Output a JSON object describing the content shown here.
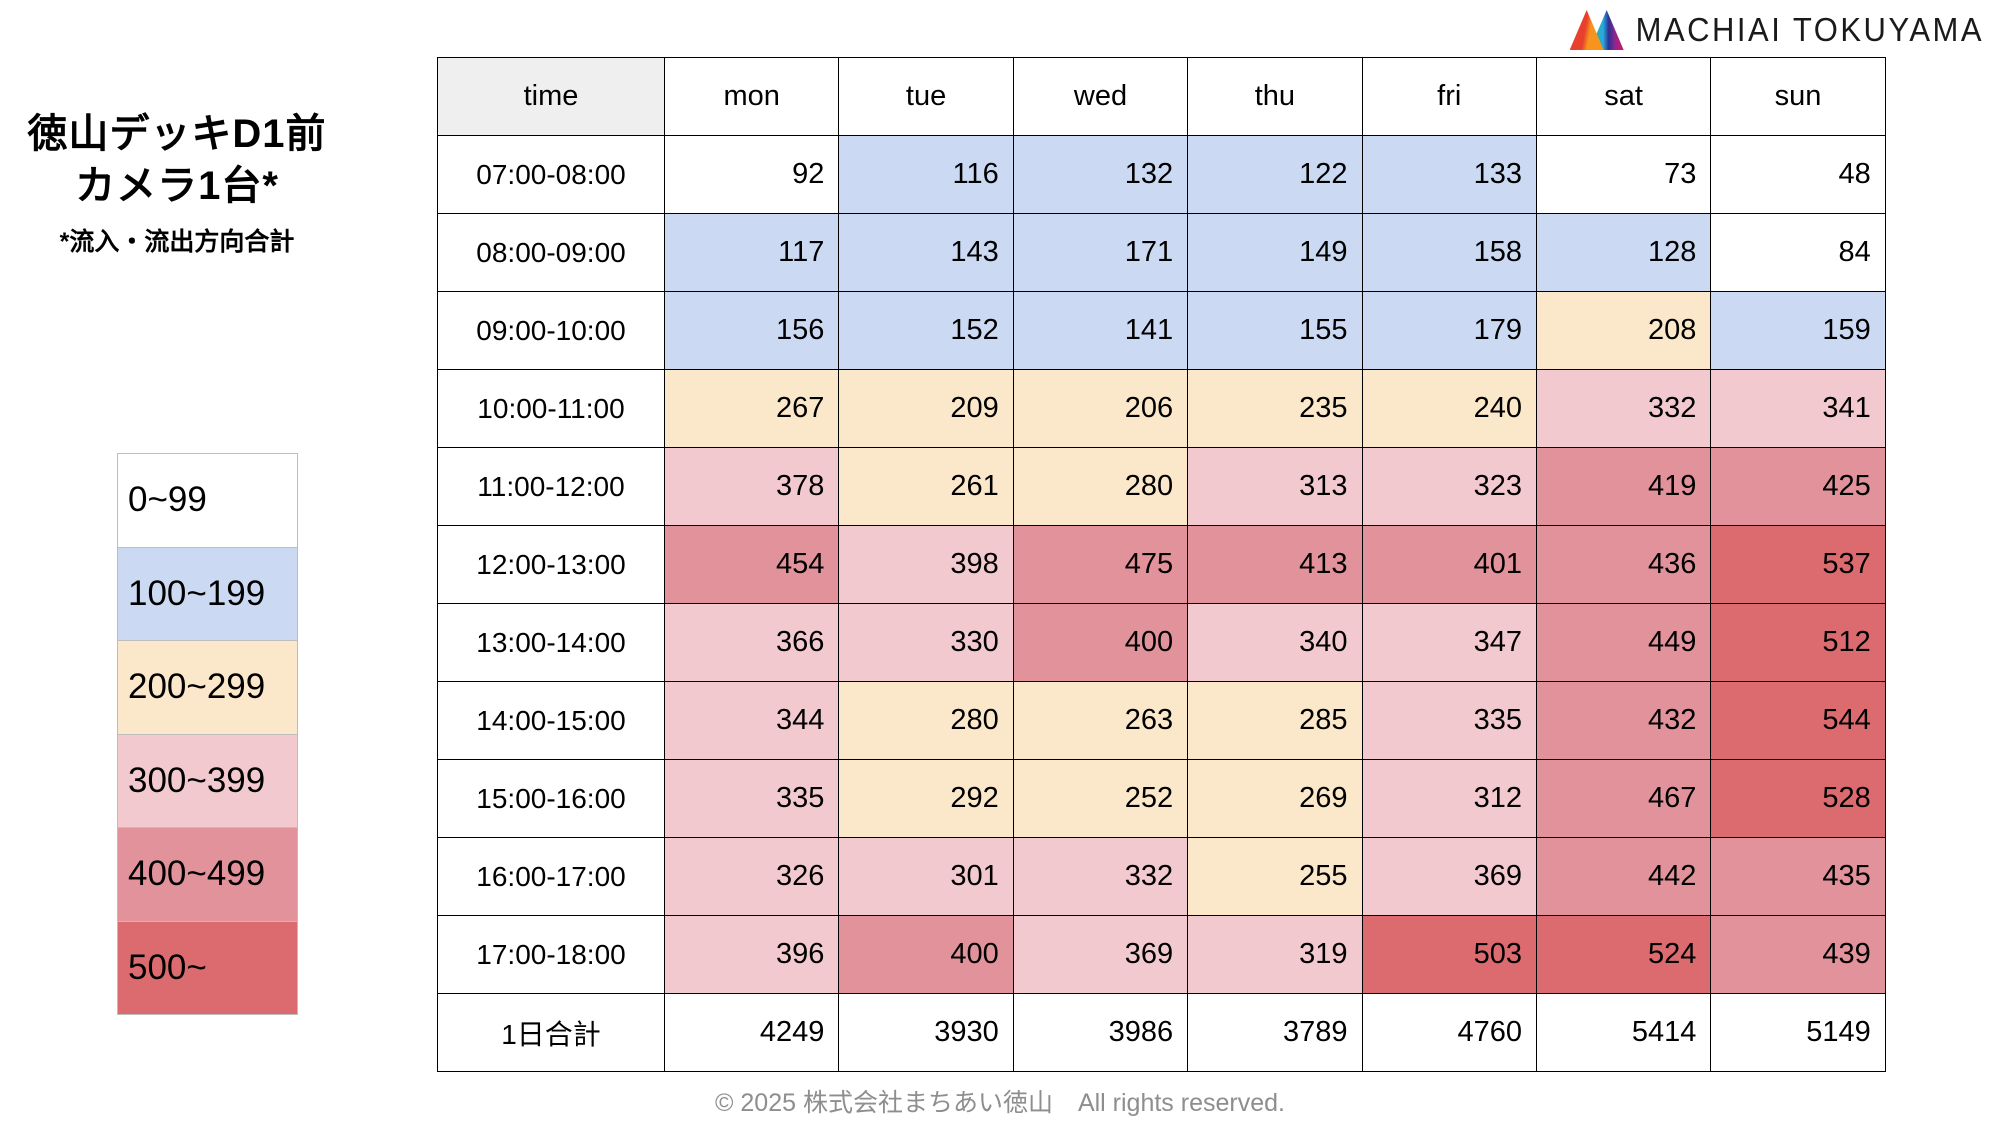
{
  "logo": {
    "brand_text": "MACHIAI TOKUYAMA"
  },
  "header": {
    "title_line1": "徳山デッキD1前",
    "title_line2": "カメラ1台*",
    "subtitle": "*流入・流出方向合計"
  },
  "legend": {
    "items": [
      {
        "label": "0~99",
        "min": 0,
        "color": "#FFFFFF"
      },
      {
        "label": "100~199",
        "min": 100,
        "color": "#CBD9F2"
      },
      {
        "label": "200~299",
        "min": 200,
        "color": "#FBE7CA"
      },
      {
        "label": "300~399",
        "min": 300,
        "color": "#F2C9CF"
      },
      {
        "label": "400~499",
        "min": 400,
        "color": "#E2929B"
      },
      {
        "label": "500~",
        "min": 500,
        "color": "#DC6B70"
      }
    ]
  },
  "chart_data": {
    "type": "heatmap",
    "title": "徳山デッキD1前 カメラ1台*",
    "note": "*流入・流出方向合計",
    "legend_position": "left",
    "columns": [
      "time",
      "mon",
      "tue",
      "wed",
      "thu",
      "fri",
      "sat",
      "sun"
    ],
    "rows": [
      {
        "time": "07:00-08:00",
        "values": [
          92,
          116,
          132,
          122,
          133,
          73,
          48
        ]
      },
      {
        "time": "08:00-09:00",
        "values": [
          117,
          143,
          171,
          149,
          158,
          128,
          84
        ]
      },
      {
        "time": "09:00-10:00",
        "values": [
          156,
          152,
          141,
          155,
          179,
          208,
          159
        ]
      },
      {
        "time": "10:00-11:00",
        "values": [
          267,
          209,
          206,
          235,
          240,
          332,
          341
        ]
      },
      {
        "time": "11:00-12:00",
        "values": [
          378,
          261,
          280,
          313,
          323,
          419,
          425
        ]
      },
      {
        "time": "12:00-13:00",
        "values": [
          454,
          398,
          475,
          413,
          401,
          436,
          537
        ]
      },
      {
        "time": "13:00-14:00",
        "values": [
          366,
          330,
          400,
          340,
          347,
          449,
          512
        ]
      },
      {
        "time": "14:00-15:00",
        "values": [
          344,
          280,
          263,
          285,
          335,
          432,
          544
        ]
      },
      {
        "time": "15:00-16:00",
        "values": [
          335,
          292,
          252,
          269,
          312,
          467,
          528
        ]
      },
      {
        "time": "16:00-17:00",
        "values": [
          326,
          301,
          332,
          255,
          369,
          442,
          435
        ]
      },
      {
        "time": "17:00-18:00",
        "values": [
          396,
          400,
          369,
          319,
          503,
          524,
          439
        ]
      }
    ],
    "total_row": {
      "label": "1日合計",
      "values": [
        4249,
        3930,
        3986,
        3789,
        4760,
        5414,
        5149
      ]
    },
    "value_bin_thresholds": [
      0,
      100,
      200,
      300,
      400,
      500
    ]
  },
  "colors": {
    "time_header_bg": "#EFEFEF",
    "table_border": "#000000",
    "legend_border": "#BDBDBD",
    "footer_text": "#8E8E8E"
  },
  "footer": {
    "copyright_text": "© 2025 株式会社まちあい徳山　All rights reserved."
  }
}
